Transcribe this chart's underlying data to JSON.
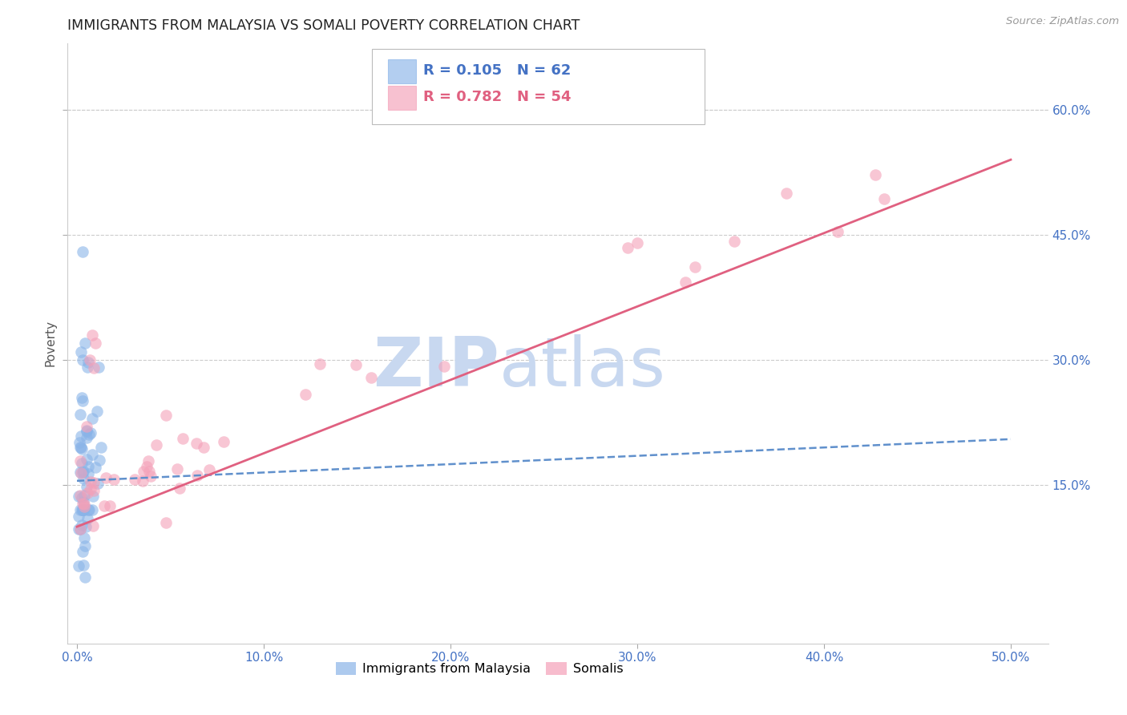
{
  "title": "IMMIGRANTS FROM MALAYSIA VS SOMALI POVERTY CORRELATION CHART",
  "source": "Source: ZipAtlas.com",
  "ylabel": "Poverty",
  "xlabel_ticks": [
    "0.0%",
    "10.0%",
    "20.0%",
    "30.0%",
    "40.0%",
    "50.0%"
  ],
  "xlabel_vals": [
    0.0,
    0.1,
    0.2,
    0.3,
    0.4,
    0.5
  ],
  "ylabel_right_labels": [
    "15.0%",
    "30.0%",
    "45.0%",
    "60.0%"
  ],
  "ylabel_right_vals": [
    0.15,
    0.3,
    0.45,
    0.6
  ],
  "ylim": [
    -0.04,
    0.68
  ],
  "xlim": [
    -0.005,
    0.52
  ],
  "legend_label1": "Immigrants from Malaysia",
  "legend_label2": "Somalis",
  "R1": "0.105",
  "N1": "62",
  "R2": "0.782",
  "N2": "54",
  "color_blue": "#8ab4e8",
  "color_pink": "#f4a0b8",
  "trendline_blue": "#6090cc",
  "trendline_pink": "#e06080",
  "axis_color": "#4472c4",
  "grid_color": "#cccccc",
  "watermark_color": "#c8d8f0",
  "title_color": "#222222",
  "source_color": "#999999",
  "ylabel_color": "#555555"
}
